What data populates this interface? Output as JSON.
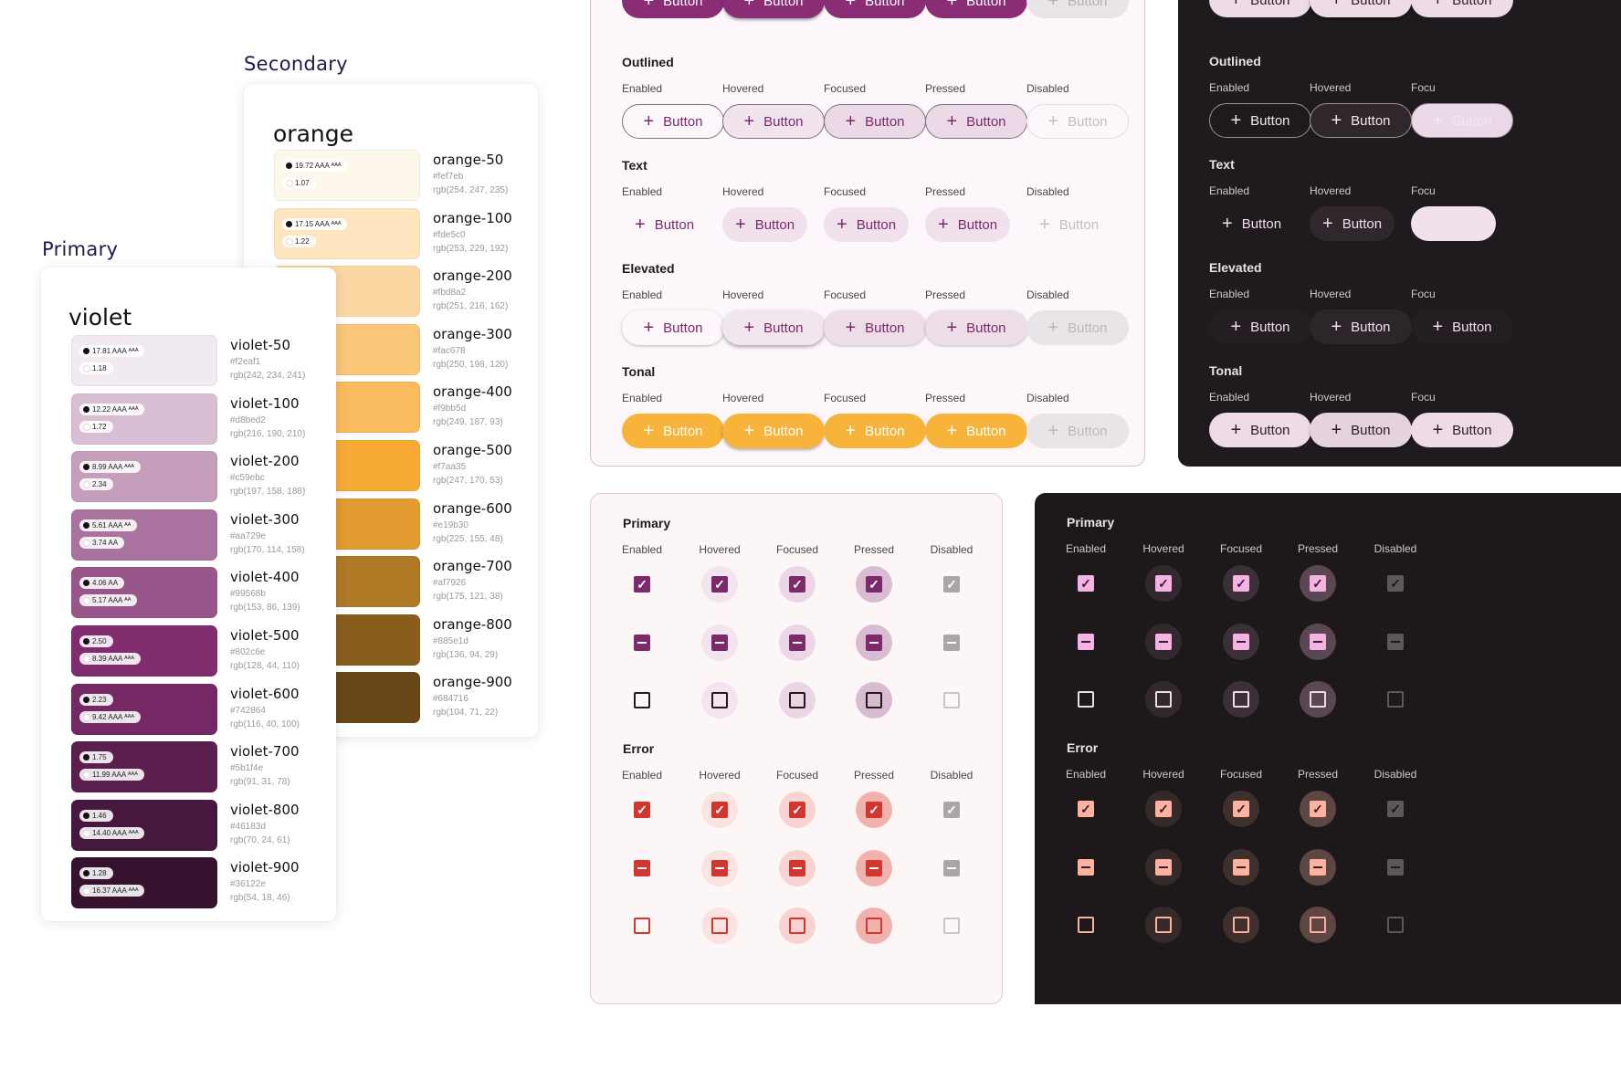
{
  "palettes": {
    "secondary": {
      "section_label": "Secondary",
      "title": "orange",
      "swatches": [
        {
          "name": "orange-50",
          "hex": "#fef7eb",
          "rgb": "rgb(254, 247, 235)",
          "color": "#fef7eb",
          "c1": "19.72 AAA ᴬᴬᴬ",
          "c2": "1.07"
        },
        {
          "name": "orange-100",
          "hex": "#fde5c0",
          "rgb": "rgb(253, 229, 192)",
          "color": "#fde5c0",
          "c1": "17.15 AAA ᴬᴬᴬ",
          "c2": "1.22"
        },
        {
          "name": "orange-200",
          "hex": "#fbd8a2",
          "rgb": "rgb(251, 216, 162)",
          "color": "#fbd8a2"
        },
        {
          "name": "orange-300",
          "hex": "#fac678",
          "rgb": "rgb(250, 198, 120)",
          "color": "#fac678"
        },
        {
          "name": "orange-400",
          "hex": "#f9bb5d",
          "rgb": "rgb(249, 187, 93)",
          "color": "#f9bb5d"
        },
        {
          "name": "orange-500",
          "hex": "#f7aa35",
          "rgb": "rgb(247, 170, 53)",
          "color": "#f7aa35"
        },
        {
          "name": "orange-600",
          "hex": "#e19b30",
          "rgb": "rgb(225, 155, 48)",
          "color": "#e19b30"
        },
        {
          "name": "orange-700",
          "hex": "#af7926",
          "rgb": "rgb(175, 121, 38)",
          "color": "#af7926"
        },
        {
          "name": "orange-800",
          "hex": "#885e1d",
          "rgb": "rgb(136, 94, 29)",
          "color": "#885e1d"
        },
        {
          "name": "orange-900",
          "hex": "#684716",
          "rgb": "rgb(104, 71, 22)",
          "color": "#684716"
        }
      ]
    },
    "primary": {
      "section_label": "Primary",
      "title": "violet",
      "swatches": [
        {
          "name": "violet-50",
          "hex": "#f2eaf1",
          "rgb": "rgb(242, 234, 241)",
          "color": "#f2eaf1",
          "c1": "17.81 AAA ᴬᴬᴬ",
          "c2": "1.18"
        },
        {
          "name": "violet-100",
          "hex": "#d8bed2",
          "rgb": "rgb(216, 190, 210)",
          "color": "#d8bed2",
          "c1": "12.22 AAA ᴬᴬᴬ",
          "c2": "1.72"
        },
        {
          "name": "violet-200",
          "hex": "#c59ebc",
          "rgb": "rgb(197, 158, 188)",
          "color": "#c59ebc",
          "c1": "8.99 AAA ᴬᴬᴬ",
          "c2": "2.34"
        },
        {
          "name": "violet-300",
          "hex": "#aa729e",
          "rgb": "rgb(170, 114, 158)",
          "color": "#aa729e",
          "c1": "5.61 AAA ᴬᴬ",
          "c2": "3.74 AA"
        },
        {
          "name": "violet-400",
          "hex": "#99568b",
          "rgb": "rgb(153, 86, 139)",
          "color": "#99568b",
          "c1": "4.06 AA",
          "c2": "5.17 AAA ᴬᴬ"
        },
        {
          "name": "violet-500",
          "hex": "#802c6e",
          "rgb": "rgb(128, 44, 110)",
          "color": "#802c6e",
          "c1": "2.50",
          "c2": "8.39 AAA ᴬᴬᴬ"
        },
        {
          "name": "violet-600",
          "hex": "#742864",
          "rgb": "rgb(116, 40, 100)",
          "color": "#742864",
          "c1": "2.23",
          "c2": "9.42 AAA ᴬᴬᴬ"
        },
        {
          "name": "violet-700",
          "hex": "#5b1f4e",
          "rgb": "rgb(91, 31, 78)",
          "color": "#5b1f4e",
          "c1": "1.75",
          "c2": "11.99 AAA ᴬᴬᴬ"
        },
        {
          "name": "violet-800",
          "hex": "#46183d",
          "rgb": "rgb(70, 24, 61)",
          "color": "#46183d",
          "c1": "1.46",
          "c2": "14.40 AAA ᴬᴬᴬ"
        },
        {
          "name": "violet-900",
          "hex": "#36122e",
          "rgb": "rgb(54, 18, 46)",
          "color": "#36122e",
          "c1": "1.28",
          "c2": "16.37 AAA ᴬᴬᴬ"
        }
      ]
    }
  },
  "buttons": {
    "label": "Button",
    "plus_icon": "plus-icon",
    "states": [
      "Enabled",
      "Hovered",
      "Focused",
      "Pressed",
      "Disabled"
    ],
    "dark_states": [
      "Enabled",
      "Hovered",
      "Focu"
    ],
    "groups": [
      "Outlined",
      "Text",
      "Elevated",
      "Tonal"
    ],
    "accent": "#8a2d77",
    "tonal": "#f8b33b"
  },
  "checkboxes": {
    "groups": [
      "Primary",
      "Error"
    ],
    "states": [
      "Enabled",
      "Hovered",
      "Focused",
      "Pressed",
      "Disabled"
    ],
    "primary_color": "#7c2a6b",
    "error_color": "#d3362f",
    "dark_primary_color": "#f4b3e3",
    "dark_error_color": "#fdb29d"
  }
}
